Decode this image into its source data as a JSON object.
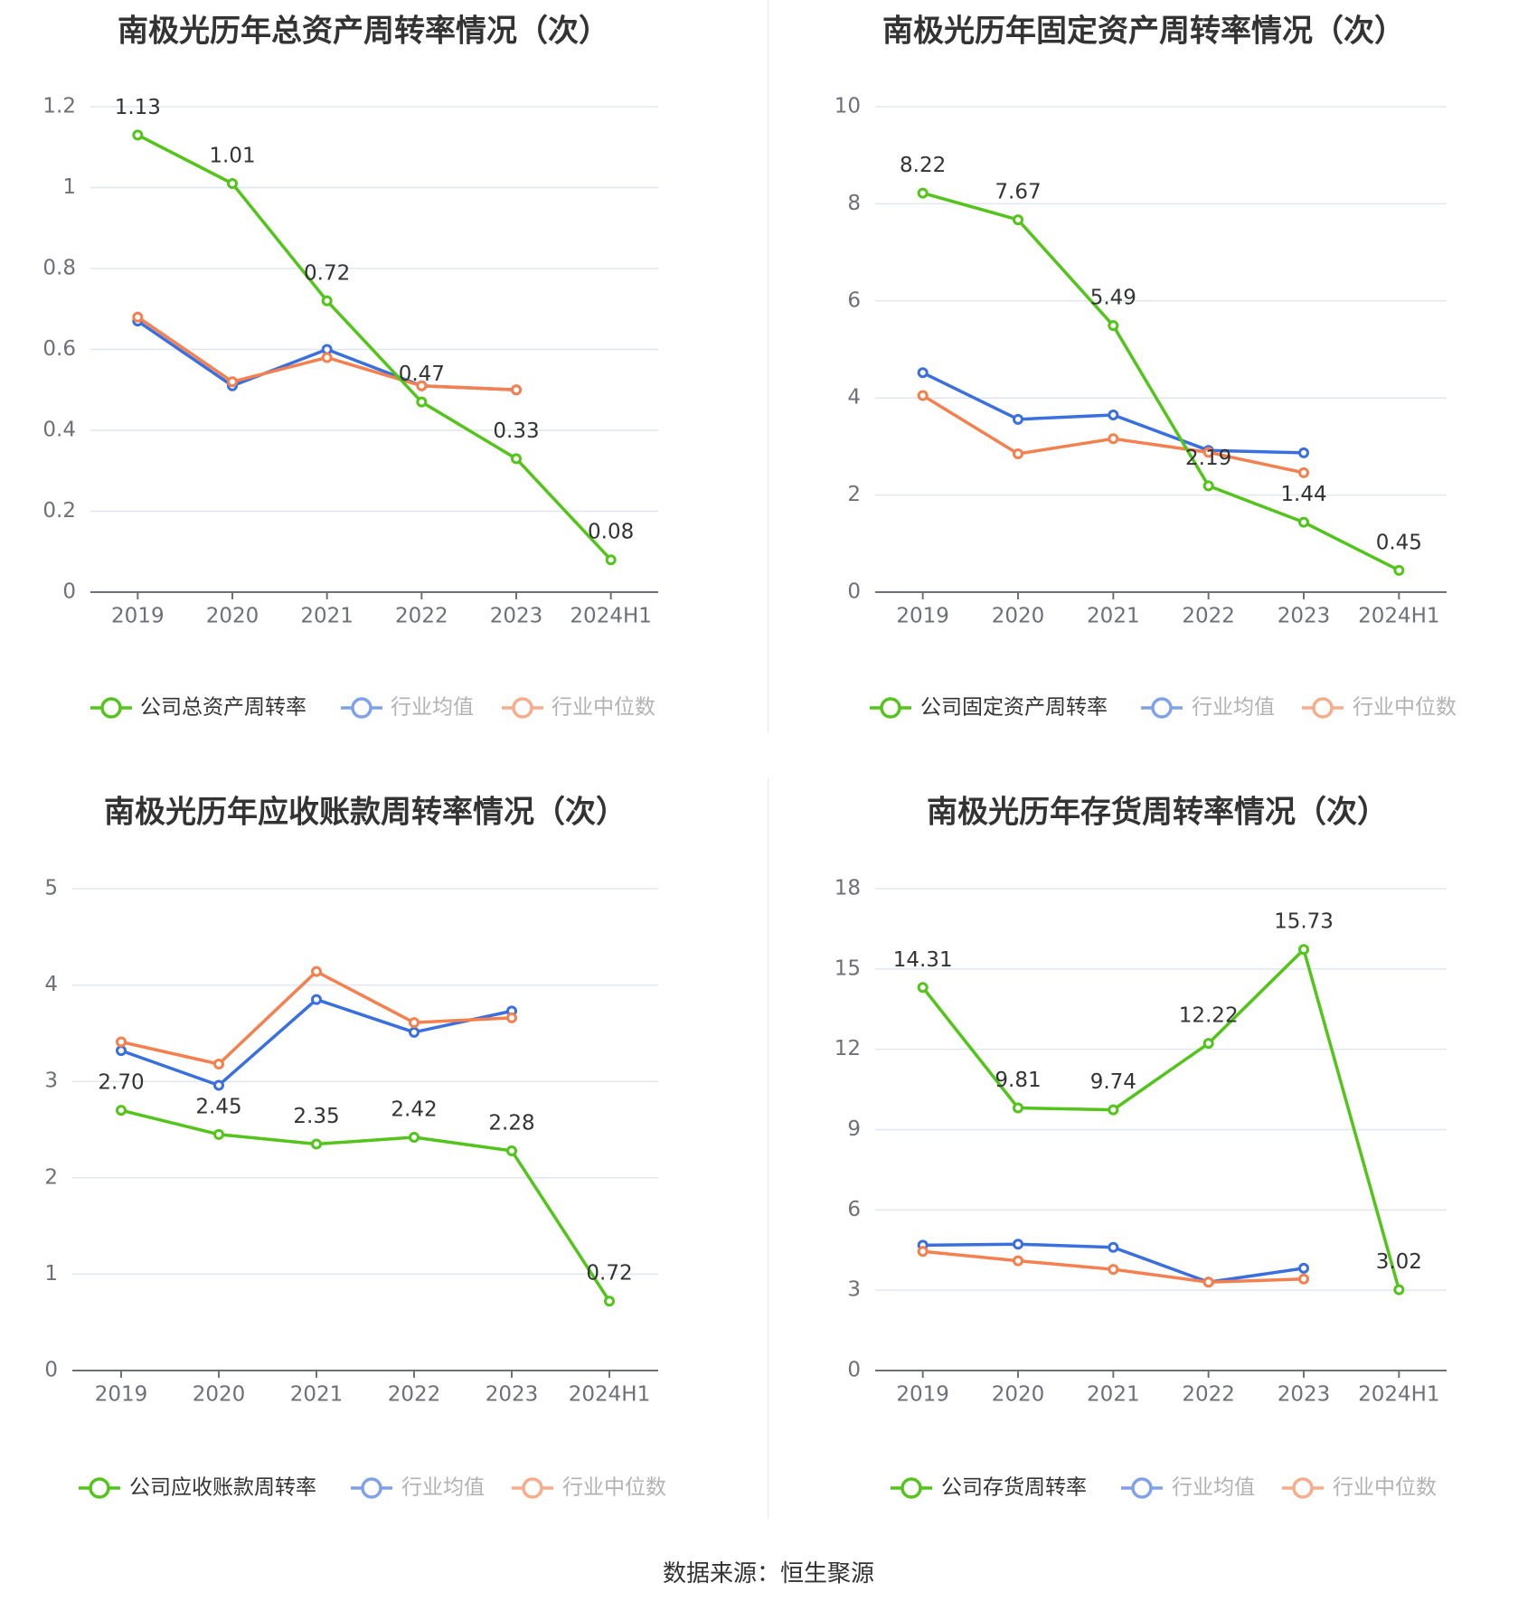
{
  "colors": {
    "company": "#52c41a",
    "avg": "#3a6fe0",
    "median": "#f5804f",
    "grid": "#e0e6f1",
    "axis": "#6e7079"
  },
  "source_text": "数据来源：恒生聚源",
  "chart_data": [
    {
      "type": "line",
      "title": "南极光历年总资产周转率情况（次）",
      "categories": [
        "2019",
        "2020",
        "2021",
        "2022",
        "2023",
        "2024H1"
      ],
      "y_ticks": [
        "0",
        "0.2",
        "0.4",
        "0.6",
        "0.8",
        "1",
        "1.2"
      ],
      "ylim": [
        0,
        1.2
      ],
      "data_labels": [
        "1.13",
        "1.01",
        "0.72",
        "0.47",
        "0.33",
        "0.08"
      ],
      "series": [
        {
          "name": "公司总资产周转率",
          "role": "company",
          "values": [
            1.13,
            1.01,
            0.72,
            0.47,
            0.33,
            0.08
          ]
        },
        {
          "name": "行业均值",
          "role": "avg",
          "values": [
            0.67,
            0.51,
            0.6,
            0.51,
            0.5,
            null
          ]
        },
        {
          "name": "行业中位数",
          "role": "median",
          "values": [
            0.68,
            0.52,
            0.58,
            0.51,
            0.5,
            null
          ]
        }
      ],
      "legend": "bottom"
    },
    {
      "type": "line",
      "title": "南极光历年固定资产周转率情况（次）",
      "categories": [
        "2019",
        "2020",
        "2021",
        "2022",
        "2023",
        "2024H1"
      ],
      "y_ticks": [
        "0",
        "2",
        "4",
        "6",
        "8",
        "10"
      ],
      "ylim": [
        0,
        10
      ],
      "data_labels": [
        "8.22",
        "7.67",
        "5.49",
        "2.19",
        "1.44",
        "0.45"
      ],
      "series": [
        {
          "name": "公司固定资产周转率",
          "role": "company",
          "values": [
            8.22,
            7.67,
            5.49,
            2.19,
            1.44,
            0.45
          ]
        },
        {
          "name": "行业均值",
          "role": "avg",
          "values": [
            4.52,
            3.56,
            3.65,
            2.92,
            2.87,
            null
          ]
        },
        {
          "name": "行业中位数",
          "role": "median",
          "values": [
            4.05,
            2.85,
            3.16,
            2.88,
            2.46,
            null
          ]
        }
      ],
      "legend": "bottom"
    },
    {
      "type": "line",
      "title": "南极光历年应收账款周转率情况（次）",
      "categories": [
        "2019",
        "2020",
        "2021",
        "2022",
        "2023",
        "2024H1"
      ],
      "y_ticks": [
        "0",
        "1",
        "2",
        "3",
        "4",
        "5"
      ],
      "ylim": [
        0,
        5
      ],
      "data_labels": [
        "2.70",
        "2.45",
        "2.35",
        "2.42",
        "2.28",
        "0.72"
      ],
      "series": [
        {
          "name": "公司应收账款周转率",
          "role": "company",
          "values": [
            2.7,
            2.45,
            2.35,
            2.42,
            2.28,
            0.72
          ]
        },
        {
          "name": "行业均值",
          "role": "avg",
          "values": [
            3.32,
            2.96,
            3.85,
            3.51,
            3.73,
            null
          ]
        },
        {
          "name": "行业中位数",
          "role": "median",
          "values": [
            3.41,
            3.18,
            4.14,
            3.61,
            3.66,
            null
          ]
        }
      ],
      "legend": "bottom"
    },
    {
      "type": "line",
      "title": "南极光历年存货周转率情况（次）",
      "categories": [
        "2019",
        "2020",
        "2021",
        "2022",
        "2023",
        "2024H1"
      ],
      "y_ticks": [
        "0",
        "3",
        "6",
        "9",
        "12",
        "15",
        "18"
      ],
      "ylim": [
        0,
        18
      ],
      "data_labels": [
        "14.31",
        "9.81",
        "9.74",
        "12.22",
        "15.73",
        "3.02"
      ],
      "series": [
        {
          "name": "公司存货周转率",
          "role": "company",
          "values": [
            14.31,
            9.81,
            9.74,
            12.22,
            15.73,
            3.02
          ]
        },
        {
          "name": "行业均值",
          "role": "avg",
          "values": [
            4.68,
            4.72,
            4.6,
            3.3,
            3.82,
            null
          ]
        },
        {
          "name": "行业中位数",
          "role": "median",
          "values": [
            4.45,
            4.1,
            3.78,
            3.3,
            3.42,
            null
          ]
        }
      ],
      "legend": "bottom"
    }
  ]
}
